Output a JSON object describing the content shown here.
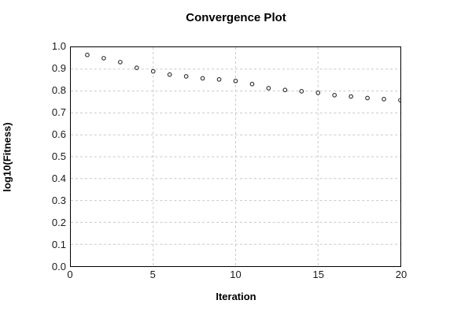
{
  "chart_data": {
    "type": "scatter",
    "title": "Convergence Plot",
    "xlabel": "Iteration",
    "ylabel": "log10(Fitness)",
    "x": [
      1,
      2,
      3,
      4,
      5,
      6,
      7,
      8,
      9,
      10,
      11,
      12,
      13,
      14,
      15,
      16,
      17,
      18,
      19,
      20
    ],
    "y": [
      0.965,
      0.95,
      0.932,
      0.906,
      0.89,
      0.875,
      0.867,
      0.858,
      0.853,
      0.846,
      0.832,
      0.813,
      0.805,
      0.799,
      0.792,
      0.781,
      0.775,
      0.768,
      0.763,
      0.758
    ],
    "xlim": [
      0,
      20
    ],
    "ylim": [
      0.0,
      1.0
    ],
    "xticks": [
      0,
      5,
      10,
      15,
      20
    ],
    "yticks": [
      0.0,
      0.1,
      0.2,
      0.3,
      0.4,
      0.5,
      0.6,
      0.7,
      0.8,
      0.9,
      1.0
    ],
    "grid": true,
    "grid_style": "dashed",
    "legend": "none",
    "marker": "open-circle",
    "colors": {
      "background": "#ffffff",
      "plot_border": "#000000",
      "grid": "#c8c8c8",
      "marker_stroke": "#2a2a2a",
      "marker_fill": "#ffffff",
      "text": "#000000",
      "tick_text": "#1a1a1a"
    }
  }
}
